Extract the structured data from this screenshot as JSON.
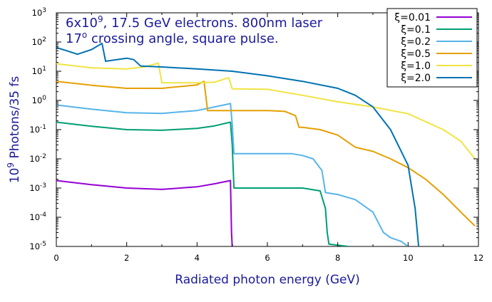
{
  "chart_data": {
    "type": "line",
    "annotation_line1": "6x10",
    "annotation_line1_sup": "9",
    "annotation_line1_rest": ", 17.5 GeV electrons. 800nm laser",
    "annotation_line2": "17",
    "annotation_line2_sup": "o",
    "annotation_line2_rest": " crossing angle, square pulse.",
    "xlabel": "Radiated photon energy (GeV)",
    "ylabel_base": "10",
    "ylabel_sup": "9",
    "ylabel_rest": " Photons/35 fs",
    "xlim": [
      0,
      12
    ],
    "ylim_log10": [
      -5,
      3
    ],
    "y_scale": "log",
    "grid": false,
    "legend_placement": "top-right",
    "x_ticks": [
      0,
      2,
      4,
      6,
      8,
      10,
      12
    ],
    "x_tick_labels": [
      "0",
      "2",
      "4",
      "6",
      "8",
      "10",
      "12"
    ],
    "y_ticks_log10": [
      -5,
      -4,
      -3,
      -2,
      -1,
      0,
      1,
      2,
      3
    ],
    "y_tick_base": "10",
    "y_tick_exps": [
      "-5",
      "-4",
      "-3",
      "-2",
      "-1",
      "0",
      "1",
      "2",
      "3"
    ],
    "series": [
      {
        "name": "ξ=0.01",
        "color": "#9400d3",
        "points": [
          [
            0,
            0.0018
          ],
          [
            1,
            0.0013
          ],
          [
            2,
            0.001
          ],
          [
            3,
            0.0009
          ],
          [
            4,
            0.0011
          ],
          [
            4.5,
            0.0014
          ],
          [
            4.95,
            0.0018
          ],
          [
            4.98,
            3e-05
          ],
          [
            5.0,
            1e-05
          ]
        ]
      },
      {
        "name": "ξ=0.1",
        "color": "#009e73",
        "points": [
          [
            0,
            0.18
          ],
          [
            1,
            0.13
          ],
          [
            2,
            0.1
          ],
          [
            3,
            0.095
          ],
          [
            4,
            0.11
          ],
          [
            4.5,
            0.135
          ],
          [
            4.95,
            0.18
          ],
          [
            5.0,
            0.03
          ],
          [
            5.05,
            0.001
          ],
          [
            6,
            0.001
          ],
          [
            7,
            0.001
          ],
          [
            7.5,
            0.0008
          ],
          [
            7.65,
            0.0002
          ],
          [
            7.7,
            3e-05
          ],
          [
            7.75,
            1.2e-05
          ],
          [
            8,
            1.1e-05
          ],
          [
            8.3,
            1e-05
          ]
        ]
      },
      {
        "name": "ξ=0.2",
        "color": "#56b4e9",
        "points": [
          [
            0,
            0.7
          ],
          [
            1,
            0.5
          ],
          [
            2,
            0.38
          ],
          [
            3,
            0.36
          ],
          [
            4,
            0.45
          ],
          [
            4.5,
            0.6
          ],
          [
            4.95,
            0.78
          ],
          [
            5.0,
            0.15
          ],
          [
            5.05,
            0.015
          ],
          [
            6,
            0.015
          ],
          [
            6.7,
            0.015
          ],
          [
            7,
            0.013
          ],
          [
            7.3,
            0.01
          ],
          [
            7.55,
            0.004
          ],
          [
            7.65,
            0.0007
          ],
          [
            8,
            0.0006
          ],
          [
            8.5,
            0.0004
          ],
          [
            9,
            0.00015
          ],
          [
            9.3,
            3e-05
          ],
          [
            9.5,
            2e-05
          ],
          [
            9.8,
            1.5e-05
          ],
          [
            10,
            1e-05
          ]
        ]
      },
      {
        "name": "ξ=0.5",
        "color": "#e69f00",
        "points": [
          [
            0,
            4.5
          ],
          [
            1,
            3.3
          ],
          [
            2,
            2.6
          ],
          [
            3,
            2.6
          ],
          [
            4,
            3.4
          ],
          [
            4.2,
            4.5
          ],
          [
            4.3,
            0.45
          ],
          [
            5,
            0.45
          ],
          [
            6,
            0.45
          ],
          [
            6.5,
            0.42
          ],
          [
            6.8,
            0.3
          ],
          [
            6.9,
            0.12
          ],
          [
            7,
            0.12
          ],
          [
            7.5,
            0.1
          ],
          [
            8,
            0.065
          ],
          [
            8.5,
            0.025
          ],
          [
            9,
            0.018
          ],
          [
            9.5,
            0.01
          ],
          [
            10,
            0.005
          ],
          [
            10.5,
            0.002
          ],
          [
            11,
            0.0006
          ],
          [
            11.5,
            0.00015
          ],
          [
            11.9,
            5e-05
          ]
        ]
      },
      {
        "name": "ξ=1.0",
        "color": "#f0e442",
        "points": [
          [
            0,
            18
          ],
          [
            1,
            13
          ],
          [
            2,
            12
          ],
          [
            2.5,
            14
          ],
          [
            2.9,
            19
          ],
          [
            3.0,
            4
          ],
          [
            3.5,
            4
          ],
          [
            4,
            4
          ],
          [
            4.5,
            4.2
          ],
          [
            4.9,
            6
          ],
          [
            5.0,
            2.5
          ],
          [
            6,
            2.4
          ],
          [
            7,
            1.5
          ],
          [
            8,
            0.9
          ],
          [
            9,
            0.6
          ],
          [
            10,
            0.35
          ],
          [
            11,
            0.1
          ],
          [
            11.5,
            0.04
          ],
          [
            11.9,
            0.01
          ]
        ]
      },
      {
        "name": "ξ=2.0",
        "color": "#0072b2",
        "points": [
          [
            0,
            65
          ],
          [
            0.3,
            50
          ],
          [
            0.6,
            38
          ],
          [
            1.0,
            55
          ],
          [
            1.3,
            90
          ],
          [
            1.4,
            22
          ],
          [
            2.0,
            28
          ],
          [
            2.2,
            25
          ],
          [
            2.4,
            15
          ],
          [
            3,
            14
          ],
          [
            4,
            12
          ],
          [
            5,
            10
          ],
          [
            6,
            7
          ],
          [
            7,
            4.5
          ],
          [
            8,
            2.6
          ],
          [
            8.5,
            1.5
          ],
          [
            9,
            0.6
          ],
          [
            9.5,
            0.1
          ],
          [
            10,
            0.006
          ],
          [
            10.2,
            0.0002
          ],
          [
            10.3,
            1e-05
          ]
        ]
      }
    ]
  }
}
